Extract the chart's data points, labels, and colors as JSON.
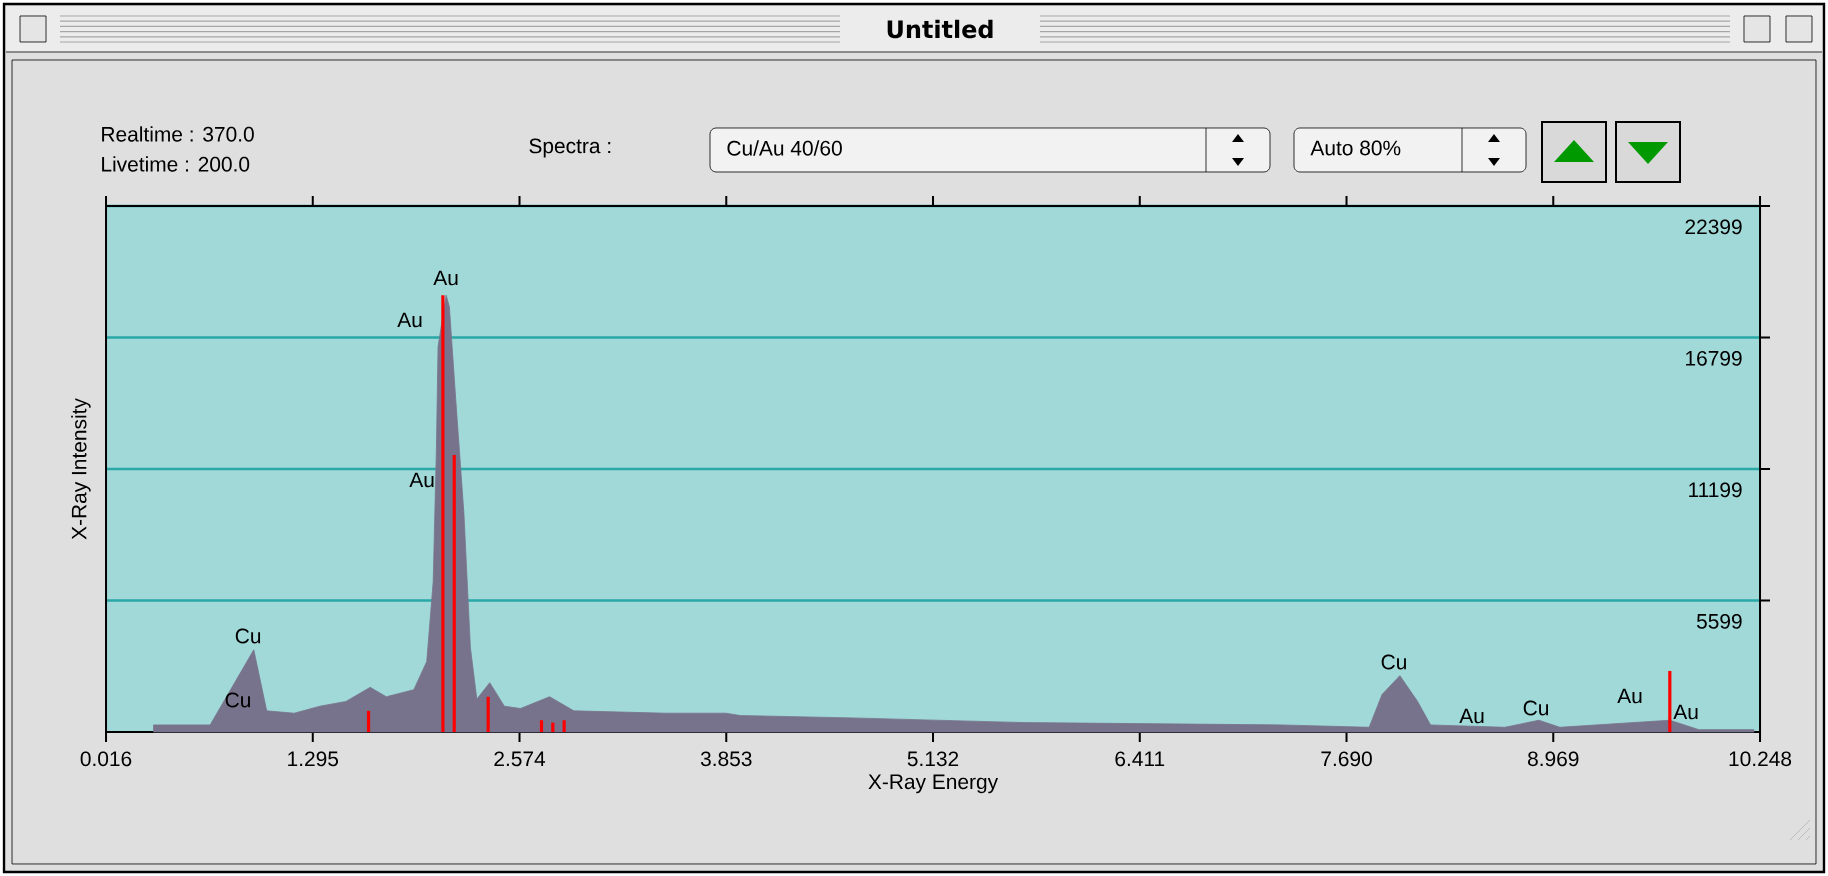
{
  "chart_data": {
    "type": "area",
    "title": "Untitled",
    "xlabel": "X-Ray Energy",
    "ylabel": "X-Ray Intensity",
    "xlim": [
      0.016,
      10.248
    ],
    "xticks": [
      0.016,
      1.295,
      2.574,
      3.853,
      5.132,
      6.411,
      {
        "value": 7.69,
        "label": "7.690"
      },
      8.969,
      10.248
    ],
    "ylim": [
      0,
      22399
    ],
    "yticks": [
      5599,
      11199,
      16799,
      22399
    ],
    "grid": "y",
    "series": [
      {
        "color": "#77738c",
        "x": [
          0.31,
          0.66,
          0.93,
          1.01,
          1.18,
          1.34,
          1.5,
          1.65,
          1.75,
          1.92,
          2.0,
          2.04,
          2.06,
          2.07,
          2.12,
          2.14,
          2.18,
          2.23,
          2.27,
          2.31,
          2.39,
          2.48,
          2.58,
          2.76,
          2.91,
          3.48,
          3.85,
          3.94,
          4.63,
          5.7,
          7.29,
          7.83,
          7.91,
          8.02,
          8.13,
          8.21,
          8.67,
          8.88,
          9.01,
          9.69,
          9.87,
          10.21
        ],
        "values": [
          300,
          300,
          3500,
          900,
          800,
          1100,
          1300,
          1900,
          1500,
          1800,
          3000,
          6400,
          12100,
          16400,
          18600,
          18100,
          14100,
          9300,
          3600,
          1400,
          2100,
          1100,
          1000,
          1500,
          900,
          800,
          800,
          700,
          600,
          400,
          300,
          200,
          1600,
          2400,
          1300,
          300,
          200,
          500,
          200,
          500,
          100,
          100
        ]
      },
      {
        "type": "bar",
        "color": "#ff0000",
        "x": [
          1.64,
          2.1,
          2.17,
          2.38,
          2.71,
          2.78,
          2.85,
          9.69
        ],
        "values": [
          900,
          18600,
          11800,
          1500,
          500,
          400,
          500,
          2600
        ]
      }
    ],
    "annotations": [
      "Realtime : 370.0",
      "Livetime : 200.0",
      "Spectra :",
      "Cu/Au 40/60",
      "Auto 80%",
      "Au",
      "Au",
      "Au",
      "Cu",
      "Cu",
      "Cu",
      "Au",
      "Cu",
      "Au",
      "Au"
    ]
  }
}
